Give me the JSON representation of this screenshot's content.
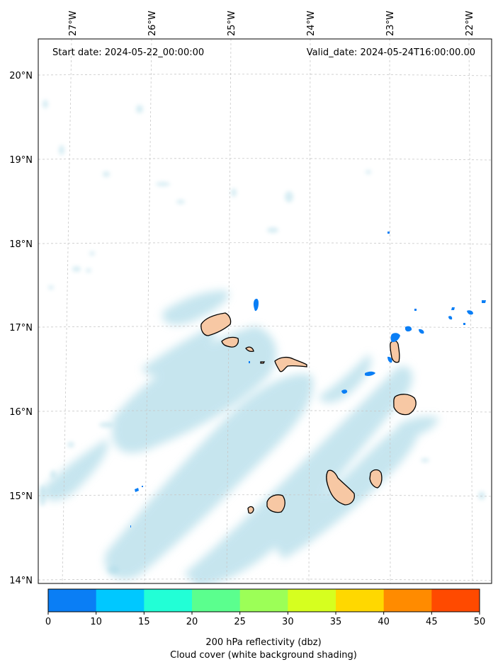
{
  "header": {
    "start_date": "Start date: 2024-05-22_00:00:00",
    "valid_date": "Valid_date: 2024-05-24T16:00:00.00"
  },
  "map": {
    "lon_labels": [
      "27°W",
      "26°W",
      "25°W",
      "24°W",
      "23°W",
      "22°W"
    ],
    "lat_labels": [
      "20°N",
      "19°N",
      "18°N",
      "17°N",
      "16°N",
      "15°N",
      "14°N"
    ],
    "land_color": "#f7c8a4",
    "cloud_color": "#a8d8e6",
    "reflectivity_color": "#0a7ef5"
  },
  "colorbar": {
    "ticks": [
      "0",
      "10",
      "15",
      "20",
      "25",
      "30",
      "35",
      "40",
      "45",
      "50"
    ],
    "colors": [
      "#0a7ef5",
      "#00c8ff",
      "#22ffd6",
      "#5bff8e",
      "#9cff57",
      "#d6ff1f",
      "#ffd800",
      "#ff8b00",
      "#ff4a00"
    ],
    "label_line1": "200 hPa reflectivity (dbz)",
    "label_line2": "Cloud cover (white background shading)"
  }
}
